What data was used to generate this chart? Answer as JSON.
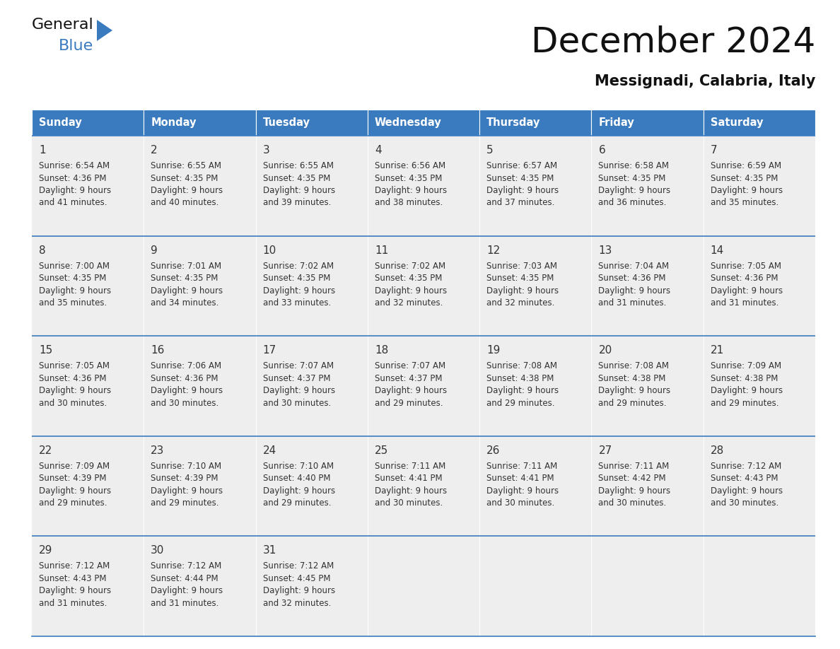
{
  "title": "December 2024",
  "subtitle": "Messignadi, Calabria, Italy",
  "header_color": "#3a7bbf",
  "header_text_color": "#ffffff",
  "cell_bg_color": "#eeeeee",
  "border_color": "#3a7bbf",
  "text_color": "#333333",
  "days_of_week": [
    "Sunday",
    "Monday",
    "Tuesday",
    "Wednesday",
    "Thursday",
    "Friday",
    "Saturday"
  ],
  "calendar_data": [
    [
      {
        "day": 1,
        "sunrise": "6:54 AM",
        "sunset": "4:36 PM",
        "daylight": "9 hours and 41 minutes."
      },
      {
        "day": 2,
        "sunrise": "6:55 AM",
        "sunset": "4:35 PM",
        "daylight": "9 hours and 40 minutes."
      },
      {
        "day": 3,
        "sunrise": "6:55 AM",
        "sunset": "4:35 PM",
        "daylight": "9 hours and 39 minutes."
      },
      {
        "day": 4,
        "sunrise": "6:56 AM",
        "sunset": "4:35 PM",
        "daylight": "9 hours and 38 minutes."
      },
      {
        "day": 5,
        "sunrise": "6:57 AM",
        "sunset": "4:35 PM",
        "daylight": "9 hours and 37 minutes."
      },
      {
        "day": 6,
        "sunrise": "6:58 AM",
        "sunset": "4:35 PM",
        "daylight": "9 hours and 36 minutes."
      },
      {
        "day": 7,
        "sunrise": "6:59 AM",
        "sunset": "4:35 PM",
        "daylight": "9 hours and 35 minutes."
      }
    ],
    [
      {
        "day": 8,
        "sunrise": "7:00 AM",
        "sunset": "4:35 PM",
        "daylight": "9 hours and 35 minutes."
      },
      {
        "day": 9,
        "sunrise": "7:01 AM",
        "sunset": "4:35 PM",
        "daylight": "9 hours and 34 minutes."
      },
      {
        "day": 10,
        "sunrise": "7:02 AM",
        "sunset": "4:35 PM",
        "daylight": "9 hours and 33 minutes."
      },
      {
        "day": 11,
        "sunrise": "7:02 AM",
        "sunset": "4:35 PM",
        "daylight": "9 hours and 32 minutes."
      },
      {
        "day": 12,
        "sunrise": "7:03 AM",
        "sunset": "4:35 PM",
        "daylight": "9 hours and 32 minutes."
      },
      {
        "day": 13,
        "sunrise": "7:04 AM",
        "sunset": "4:36 PM",
        "daylight": "9 hours and 31 minutes."
      },
      {
        "day": 14,
        "sunrise": "7:05 AM",
        "sunset": "4:36 PM",
        "daylight": "9 hours and 31 minutes."
      }
    ],
    [
      {
        "day": 15,
        "sunrise": "7:05 AM",
        "sunset": "4:36 PM",
        "daylight": "9 hours and 30 minutes."
      },
      {
        "day": 16,
        "sunrise": "7:06 AM",
        "sunset": "4:36 PM",
        "daylight": "9 hours and 30 minutes."
      },
      {
        "day": 17,
        "sunrise": "7:07 AM",
        "sunset": "4:37 PM",
        "daylight": "9 hours and 30 minutes."
      },
      {
        "day": 18,
        "sunrise": "7:07 AM",
        "sunset": "4:37 PM",
        "daylight": "9 hours and 29 minutes."
      },
      {
        "day": 19,
        "sunrise": "7:08 AM",
        "sunset": "4:38 PM",
        "daylight": "9 hours and 29 minutes."
      },
      {
        "day": 20,
        "sunrise": "7:08 AM",
        "sunset": "4:38 PM",
        "daylight": "9 hours and 29 minutes."
      },
      {
        "day": 21,
        "sunrise": "7:09 AM",
        "sunset": "4:38 PM",
        "daylight": "9 hours and 29 minutes."
      }
    ],
    [
      {
        "day": 22,
        "sunrise": "7:09 AM",
        "sunset": "4:39 PM",
        "daylight": "9 hours and 29 minutes."
      },
      {
        "day": 23,
        "sunrise": "7:10 AM",
        "sunset": "4:39 PM",
        "daylight": "9 hours and 29 minutes."
      },
      {
        "day": 24,
        "sunrise": "7:10 AM",
        "sunset": "4:40 PM",
        "daylight": "9 hours and 29 minutes."
      },
      {
        "day": 25,
        "sunrise": "7:11 AM",
        "sunset": "4:41 PM",
        "daylight": "9 hours and 30 minutes."
      },
      {
        "day": 26,
        "sunrise": "7:11 AM",
        "sunset": "4:41 PM",
        "daylight": "9 hours and 30 minutes."
      },
      {
        "day": 27,
        "sunrise": "7:11 AM",
        "sunset": "4:42 PM",
        "daylight": "9 hours and 30 minutes."
      },
      {
        "day": 28,
        "sunrise": "7:12 AM",
        "sunset": "4:43 PM",
        "daylight": "9 hours and 30 minutes."
      }
    ],
    [
      {
        "day": 29,
        "sunrise": "7:12 AM",
        "sunset": "4:43 PM",
        "daylight": "9 hours and 31 minutes."
      },
      {
        "day": 30,
        "sunrise": "7:12 AM",
        "sunset": "4:44 PM",
        "daylight": "9 hours and 31 minutes."
      },
      {
        "day": 31,
        "sunrise": "7:12 AM",
        "sunset": "4:45 PM",
        "daylight": "9 hours and 32 minutes."
      },
      null,
      null,
      null,
      null
    ]
  ],
  "logo_text1": "General",
  "logo_text2": "Blue",
  "logo_color1": "#111111",
  "logo_color2": "#3a7bbf",
  "logo_triangle_color": "#3a7bbf",
  "title_fontsize": 36,
  "subtitle_fontsize": 15,
  "header_fontsize": 10.5,
  "day_num_fontsize": 11,
  "cell_text_fontsize": 8.5
}
